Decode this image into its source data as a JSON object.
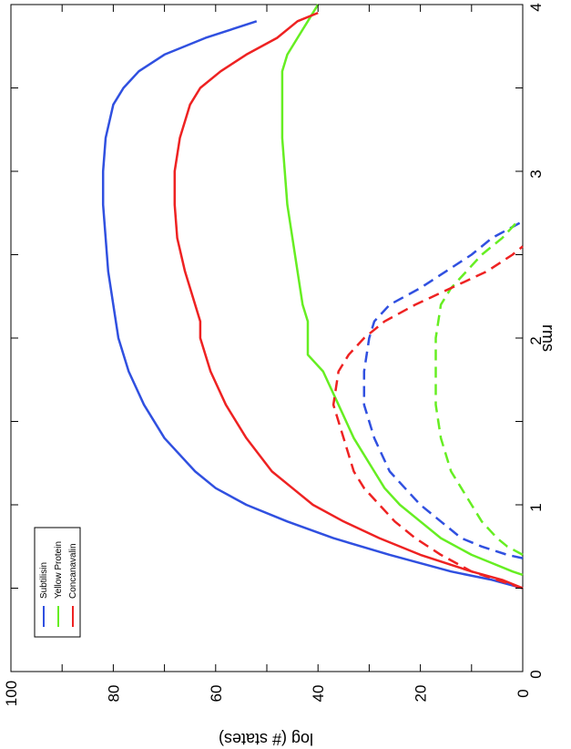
{
  "chart_data": {
    "type": "line",
    "orientation": "rotated 90 degrees clockwise",
    "xlabel": "rms",
    "ylabel": "log (# states)",
    "xlim": [
      0,
      4
    ],
    "ylim": [
      0,
      100
    ],
    "x_ticks": [
      0,
      1,
      2,
      3,
      4
    ],
    "y_ticks": [
      0,
      20,
      40,
      60,
      80,
      100
    ],
    "grid": false,
    "legend_position": "bottom-left",
    "legend": [
      "Subtilisin",
      "Yellow Protein",
      "Concanavalin"
    ],
    "series": [
      {
        "name": "Subtilisin",
        "style": "solid",
        "color": "#3050e0",
        "x": [
          0.5,
          0.55,
          0.6,
          0.7,
          0.8,
          0.9,
          1.0,
          1.1,
          1.2,
          1.4,
          1.6,
          1.8,
          2.0,
          2.2,
          2.4,
          2.6,
          2.8,
          3.0,
          3.2,
          3.4,
          3.5,
          3.6,
          3.7,
          3.8,
          3.9
        ],
        "y": [
          0,
          6,
          14,
          26,
          37,
          46,
          54,
          60,
          64,
          70,
          74,
          77,
          79,
          80,
          81,
          81.5,
          82,
          82,
          81.5,
          80,
          78,
          75,
          70,
          62,
          52
        ]
      },
      {
        "name": "Yellow Protein",
        "style": "solid",
        "color": "#66ee22",
        "x": [
          0.58,
          0.6,
          0.65,
          0.7,
          0.8,
          0.9,
          1.0,
          1.1,
          1.2,
          1.4,
          1.6,
          1.8,
          1.9,
          2.1,
          2.2,
          2.4,
          2.6,
          2.8,
          3.0,
          3.2,
          3.4,
          3.6,
          3.7,
          3.8,
          3.9,
          4.0
        ],
        "y": [
          0,
          2,
          6,
          10,
          16,
          20,
          24,
          27,
          29,
          33,
          36,
          39,
          42,
          42,
          43,
          44,
          45,
          46,
          46.5,
          47,
          47,
          47,
          46,
          44,
          42,
          40
        ]
      },
      {
        "name": "Concanavalin",
        "style": "solid",
        "color": "#ee2222",
        "x": [
          0.5,
          0.55,
          0.6,
          0.7,
          0.8,
          0.9,
          1.0,
          1.1,
          1.2,
          1.4,
          1.6,
          1.8,
          2.0,
          2.1,
          2.2,
          2.4,
          2.6,
          2.8,
          3.0,
          3.2,
          3.4,
          3.5,
          3.6,
          3.7,
          3.8,
          3.9,
          3.95
        ],
        "y": [
          0,
          4,
          10,
          20,
          28,
          35,
          41,
          45,
          49,
          54,
          58,
          61,
          63,
          63,
          64,
          66,
          67.5,
          68,
          68,
          67,
          65,
          63,
          59,
          54,
          48,
          44,
          40
        ]
      },
      {
        "name": "Subtilisin",
        "style": "dashed",
        "color": "#3050e0",
        "x": [
          0.68,
          0.7,
          0.75,
          0.8,
          0.9,
          1.0,
          1.1,
          1.2,
          1.4,
          1.6,
          1.8,
          2.0,
          2.1,
          2.2,
          2.3,
          2.4,
          2.5,
          2.6,
          2.65,
          2.7
        ],
        "y": [
          0,
          3,
          8,
          12,
          16,
          20,
          23,
          26,
          29,
          31,
          31,
          30,
          29,
          26,
          20,
          15,
          10,
          6,
          3,
          0
        ]
      },
      {
        "name": "Yellow Protein",
        "style": "dashed",
        "color": "#66ee22",
        "x": [
          0.7,
          0.75,
          0.8,
          0.9,
          1.0,
          1.1,
          1.2,
          1.4,
          1.6,
          1.8,
          2.0,
          2.2,
          2.3,
          2.4,
          2.5,
          2.6,
          2.7
        ],
        "y": [
          0,
          3,
          5,
          8,
          10,
          12,
          14,
          16,
          17,
          17,
          17,
          16,
          14,
          11,
          8,
          4,
          1
        ]
      },
      {
        "name": "Concanavalin",
        "style": "dashed",
        "color": "#ee2222",
        "x": [
          0.5,
          0.55,
          0.6,
          0.7,
          0.8,
          0.9,
          1.0,
          1.1,
          1.2,
          1.4,
          1.6,
          1.8,
          1.9,
          2.0,
          2.1,
          2.2,
          2.3,
          2.4,
          2.5,
          2.55
        ],
        "y": [
          0,
          5,
          10,
          16,
          21,
          25,
          28,
          31,
          33,
          35,
          37,
          36,
          34,
          31,
          27,
          21,
          14,
          7,
          2,
          0
        ]
      }
    ]
  }
}
